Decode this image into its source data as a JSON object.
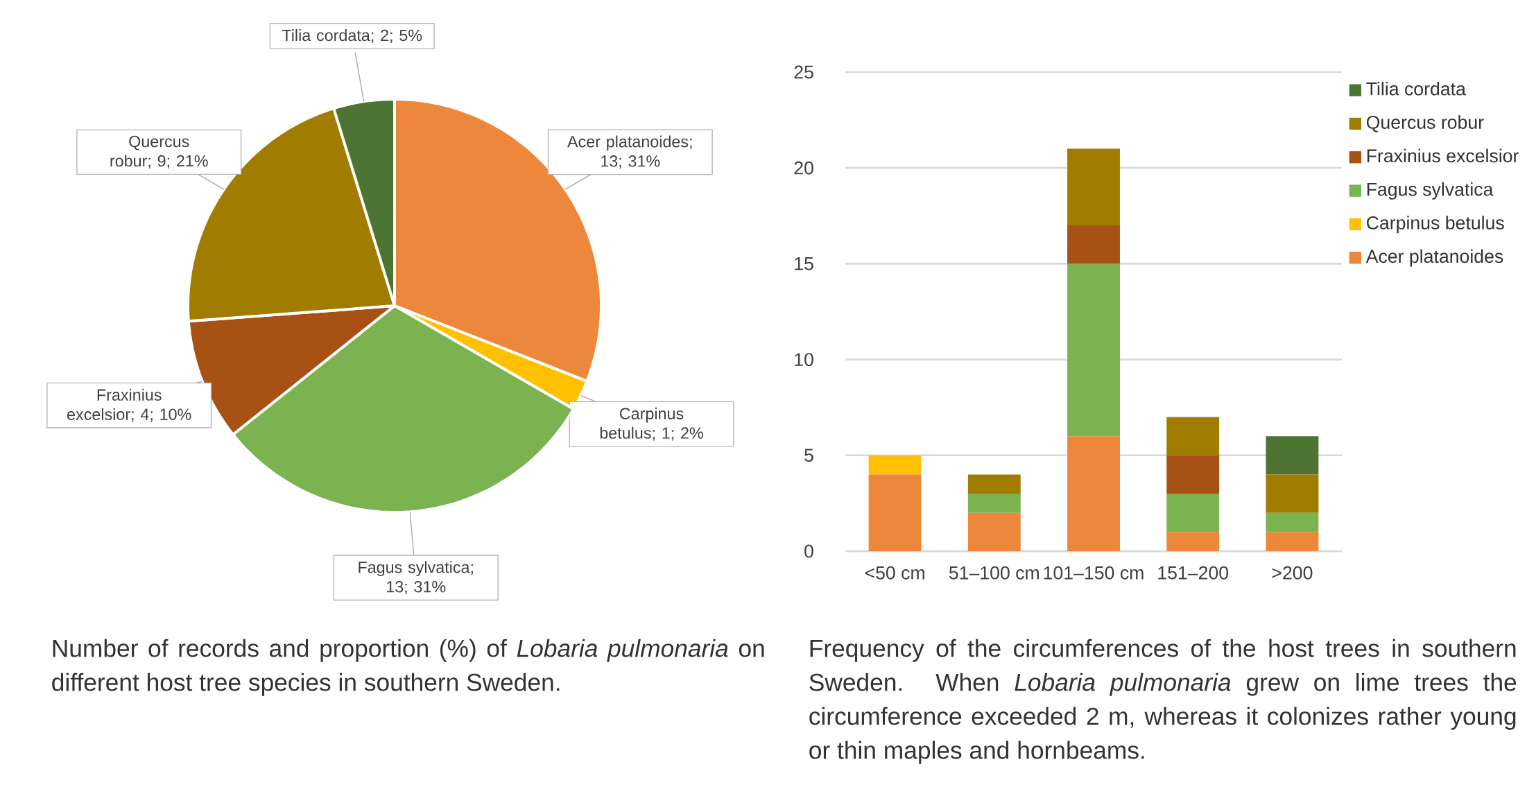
{
  "chart_data": [
    {
      "type": "pie",
      "categories": [
        "Acer platanoides",
        "Carpinus betulus",
        "Fagus sylvatica",
        "Fraxinius excelsior",
        "Quercus robur",
        "Tilia cordata"
      ],
      "values": [
        13,
        1,
        13,
        4,
        9,
        2
      ],
      "value_labels": [
        "; 13; 31%",
        "; 1; 2%",
        "; 13; 31%",
        "; 4; 10%",
        "; 9; 21%",
        "; 2; 5%"
      ],
      "colors": [
        "#ed873c",
        "#ffc000",
        "#7ab350",
        "#a85114",
        "#a07d00",
        "#4e7433"
      ],
      "annotations": [
        "Number of records and proportion (%) of *Lobaria pulmonaria* on different host tree species in southern Sweden."
      ]
    },
    {
      "type": "bar",
      "stacked": true,
      "categories": [
        "<50 cm",
        "51–100 cm",
        "101–150 cm",
        "151–200",
        ">200"
      ],
      "series": [
        {
          "name": "Acer platanoides",
          "color": "#ed873c",
          "values": [
            4,
            2,
            6,
            1,
            1
          ]
        },
        {
          "name": "Carpinus betulus",
          "color": "#ffc000",
          "values": [
            1,
            0,
            0,
            0,
            0
          ]
        },
        {
          "name": "Fagus sylvatica",
          "color": "#7ab350",
          "values": [
            0,
            1,
            9,
            2,
            1
          ]
        },
        {
          "name": "Fraxinius excelsior",
          "color": "#a85114",
          "values": [
            0,
            0,
            2,
            2,
            0
          ]
        },
        {
          "name": "Quercus robur",
          "color": "#a07d00",
          "values": [
            0,
            1,
            4,
            2,
            2
          ]
        },
        {
          "name": "Tilia cordata",
          "color": "#4e7433",
          "values": [
            0,
            0,
            0,
            0,
            2
          ]
        }
      ],
      "ylim": [
        0,
        25
      ],
      "yticks": [
        0,
        5,
        10,
        15,
        20,
        25
      ],
      "grid": "y",
      "legend": "top right",
      "annotations": [
        "Frequency of the circumferences of the host trees in southern Sweden. When *Lobaria pulmonaria* grew on lime trees the circumference exceeded 2 m, whereas it colonizes rather young or thin maples and hornbeams."
      ]
    }
  ]
}
